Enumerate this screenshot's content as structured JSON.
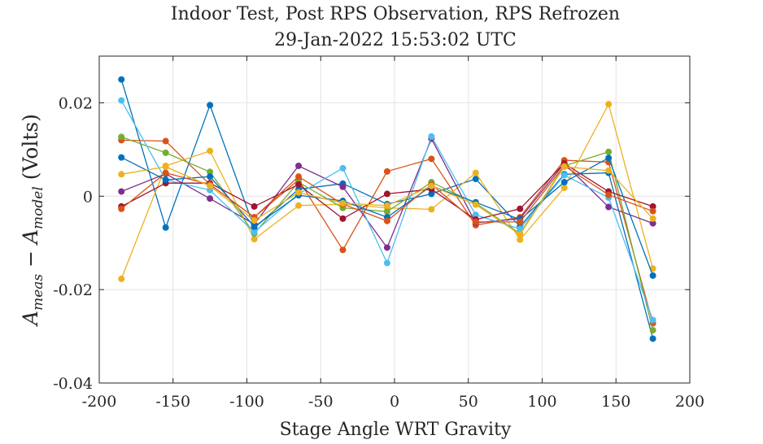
{
  "chart_data": {
    "type": "line",
    "title": "Indoor Test, Post RPS Observation, RPS Refrozen",
    "subtitle": "29-Jan-2022 15:53:02 UTC",
    "xlabel": "Stage Angle WRT Gravity",
    "ylabel": {
      "main1": "A",
      "sub1": "meas",
      "op": " − ",
      "main2": "A",
      "sub2": "model",
      "unit": " (Volts)"
    },
    "xlim": [
      -200,
      200
    ],
    "ylim": [
      -0.04,
      0.03
    ],
    "grid": true,
    "legend": "none",
    "xticks": [
      -200,
      -150,
      -100,
      -50,
      0,
      50,
      100,
      150,
      200
    ],
    "xtick_labels": [
      "-200",
      "-150",
      "-100",
      "-50",
      "0",
      "50",
      "100",
      "150",
      "200"
    ],
    "yticks": [
      -0.04,
      -0.02,
      0,
      0.02
    ],
    "ytick_labels": [
      "-0.04",
      "-0.02",
      "0",
      "0.02"
    ],
    "x": [
      -185,
      -155,
      -125,
      -95,
      -65,
      -35,
      -5,
      25,
      55,
      85,
      115,
      145,
      175
    ],
    "series": [
      {
        "color": "#0072BD",
        "values": [
          0.025,
          -0.0067,
          0.0195,
          -0.0068,
          0.0015,
          0.0027,
          -0.0017,
          0.0005,
          0.0037,
          -0.0065,
          0.0047,
          0.005,
          -0.0305
        ]
      },
      {
        "color": "#D95319",
        "values": [
          0.012,
          0.0118,
          0.0025,
          -0.0045,
          0.0035,
          -0.0115,
          0.0053,
          0.008,
          -0.0062,
          -0.0045,
          0.0077,
          0.0073,
          -0.0272
        ]
      },
      {
        "color": "#EDB120",
        "values": [
          -0.0177,
          0.0065,
          0.0097,
          -0.0092,
          -0.002,
          -0.0017,
          -0.0025,
          -0.0028,
          0.005,
          -0.0093,
          0.0018,
          0.0197,
          -0.0155
        ]
      },
      {
        "color": "#7E2F8E",
        "values": [
          0.001,
          0.0048,
          -0.0005,
          -0.006,
          0.0065,
          0.002,
          -0.011,
          0.0123,
          -0.0057,
          -0.0048,
          0.007,
          -0.0023,
          -0.0058
        ]
      },
      {
        "color": "#77AC30",
        "values": [
          0.0127,
          0.0093,
          0.0052,
          -0.008,
          0.003,
          -0.0025,
          -0.0033,
          0.003,
          -0.0015,
          -0.008,
          0.0065,
          0.0095,
          -0.0287
        ]
      },
      {
        "color": "#4DBEEE",
        "values": [
          0.0205,
          0.0035,
          0.0013,
          -0.0077,
          0.0005,
          0.006,
          -0.0143,
          0.0128,
          -0.004,
          -0.007,
          0.0045,
          -0.0003,
          -0.0265
        ]
      },
      {
        "color": "#A2142F",
        "values": [
          -0.0022,
          0.0028,
          0.0028,
          -0.0022,
          0.0025,
          -0.0048,
          0.0005,
          0.0015,
          -0.005,
          -0.0027,
          0.007,
          0.001,
          -0.0022
        ]
      },
      {
        "color": "#0072BD",
        "values": [
          0.0083,
          0.0035,
          0.0042,
          -0.0065,
          0.0002,
          -0.001,
          -0.0045,
          0.0022,
          -0.0013,
          -0.005,
          0.003,
          0.0082,
          -0.017
        ]
      },
      {
        "color": "#D95319",
        "values": [
          -0.0027,
          0.005,
          0.0025,
          -0.0045,
          0.0042,
          -0.0017,
          -0.0053,
          0.0025,
          -0.0055,
          -0.0055,
          0.0065,
          0.0003,
          -0.0032
        ]
      },
      {
        "color": "#EDB120",
        "values": [
          0.0047,
          0.0063,
          0.0022,
          -0.0052,
          0.0008,
          -0.0015,
          -0.002,
          0.0022,
          -0.0018,
          -0.0082,
          0.0063,
          0.0055,
          -0.0048
        ]
      }
    ]
  }
}
